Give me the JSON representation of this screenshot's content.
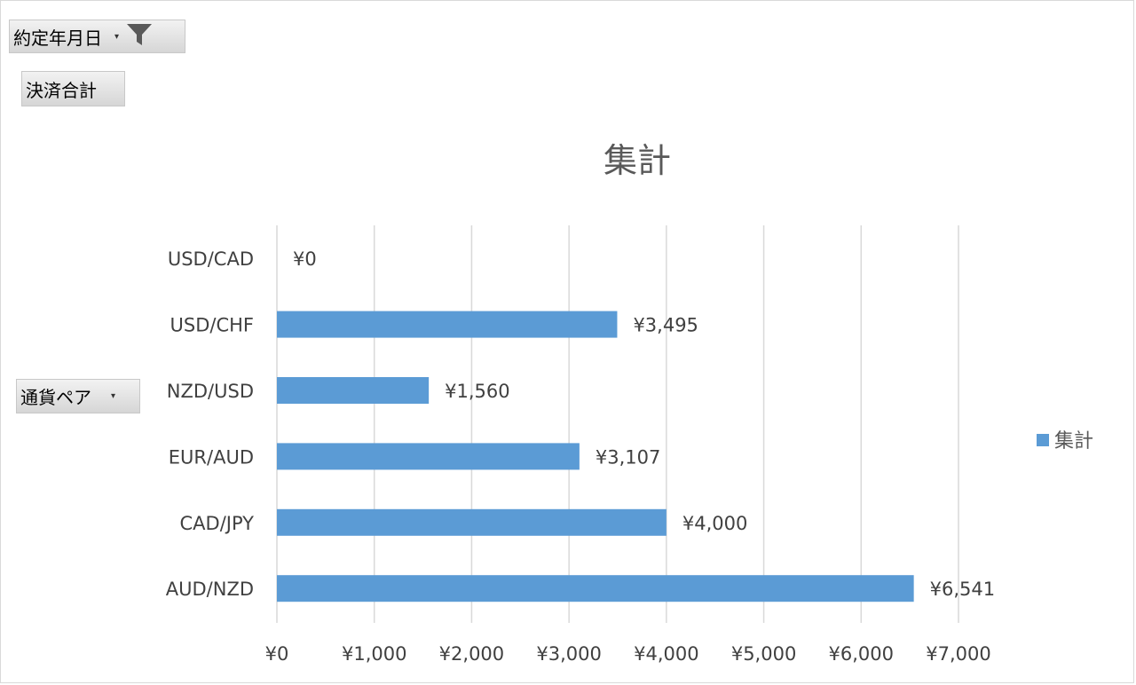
{
  "filter_field": {
    "label": "約定年月日"
  },
  "value_field": {
    "label": "決済合計"
  },
  "row_field": {
    "label": "通貨ペア"
  },
  "chart_data": {
    "type": "bar",
    "orientation": "horizontal",
    "title": "集計",
    "categories": [
      "USD/CAD",
      "USD/CHF",
      "NZD/USD",
      "EUR/AUD",
      "CAD/JPY",
      "AUD/NZD"
    ],
    "series": [
      {
        "name": "集計",
        "values": [
          0,
          3495,
          1560,
          3107,
          4000,
          6541
        ],
        "color": "#5b9bd5"
      }
    ],
    "data_labels": [
      "¥0",
      "¥3,495",
      "¥1,560",
      "¥3,107",
      "¥4,000",
      "¥6,541"
    ],
    "xlim": [
      0,
      7000
    ],
    "x_ticks": [
      0,
      1000,
      2000,
      3000,
      4000,
      5000,
      6000,
      7000
    ],
    "x_tick_labels": [
      "¥0",
      "¥1,000",
      "¥2,000",
      "¥3,000",
      "¥4,000",
      "¥5,000",
      "¥6,000",
      "¥7,000"
    ],
    "grid": true,
    "legend": {
      "position": "right",
      "entry": "集計"
    },
    "colors": {
      "bar": "#5b9bd5",
      "grid": "#d9d9d9",
      "text": "#404040",
      "title": "#595959"
    }
  }
}
